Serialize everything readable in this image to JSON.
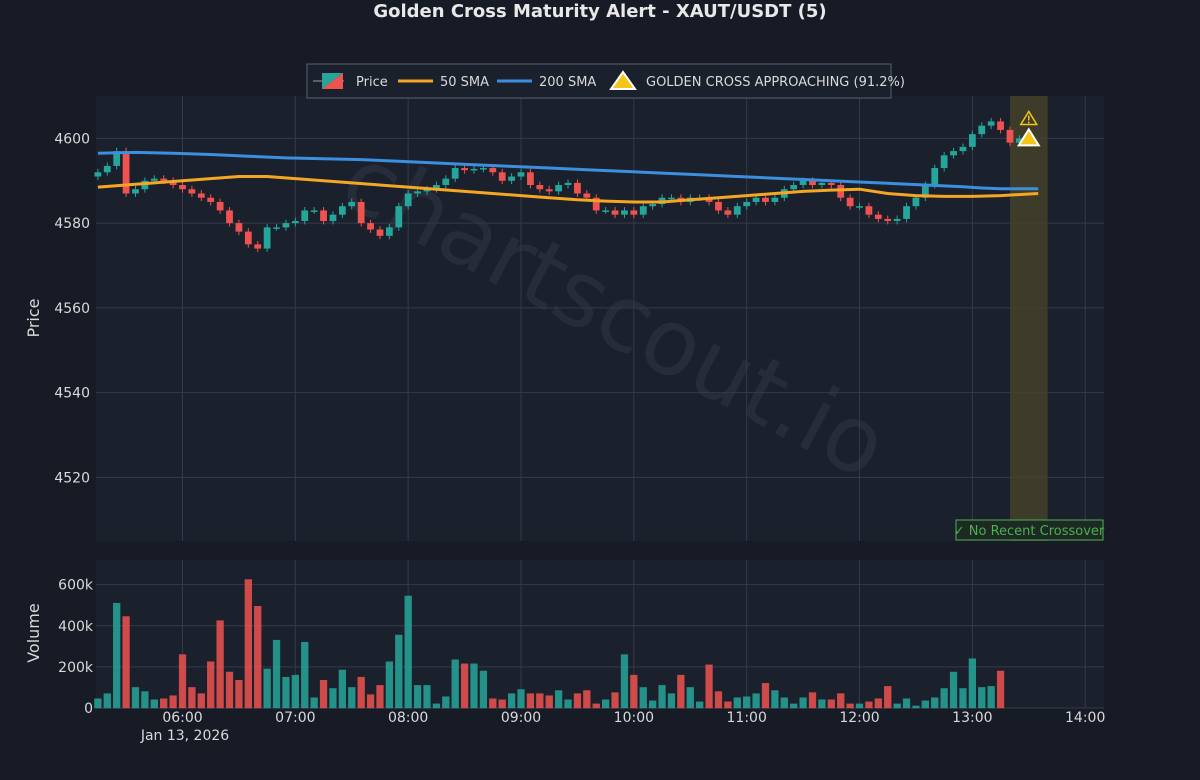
{
  "colors": {
    "background": "#161b26",
    "panel": "#1b202d",
    "bull": "#26a69a",
    "bear": "#ef5350",
    "sma50": "#f5a623",
    "sma200": "#3b8fde",
    "alert_band": "#4a4428",
    "badge": "#4caf50",
    "warning": "#f5c518"
  },
  "chart_data": {
    "type": "candlestick",
    "title": "Golden Cross Maturity Alert - XAUT/USDT (5)",
    "xlabel": "",
    "ylabel": "Price",
    "volume_ylabel": "Volume",
    "interval_minutes": 5,
    "x_range": [
      "05:14",
      "14:10"
    ],
    "y_range": [
      4505,
      4610
    ],
    "volume_range": [
      0,
      720000
    ],
    "x_ticks": [
      "06:00",
      "07:00",
      "08:00",
      "09:00",
      "10:00",
      "11:00",
      "12:00",
      "13:00",
      "14:00"
    ],
    "x_tick_date": "Jan 13, 2026",
    "y_ticks": [
      4520,
      4540,
      4560,
      4580,
      4600
    ],
    "volume_ticks": [
      "0",
      "200k",
      "400k",
      "600k"
    ],
    "grid": true,
    "legend_placement": "top-center",
    "legend": [
      "Price",
      "50 SMA",
      "200 SMA",
      "GOLDEN CROSS APPROACHING (91.2%)"
    ],
    "start_time": "05:15",
    "closes": [
      4592,
      4593.5,
      4597,
      4587,
      4588,
      4590,
      4590.5,
      4590,
      4589,
      4588,
      4587,
      4586,
      4585,
      4583,
      4580,
      4578,
      4575,
      4574,
      4579,
      4579,
      4580,
      4580.5,
      4583,
      4583,
      4580.5,
      4582,
      4584,
      4585,
      4580,
      4578.5,
      4577,
      4579,
      4584,
      4587,
      4587.5,
      4588,
      4589,
      4590.5,
      4593,
      4592.5,
      4592.8,
      4593,
      4592,
      4590,
      4591,
      4592,
      4589,
      4588,
      4587.5,
      4589,
      4589.5,
      4587,
      4586,
      4583,
      4583,
      4582,
      4583,
      4582,
      4584,
      4584.5,
      4586,
      4586,
      4585,
      4586,
      4586,
      4585,
      4583,
      4582,
      4584,
      4585,
      4586,
      4585,
      4586,
      4588,
      4589,
      4590,
      4589,
      4589.5,
      4589,
      4586,
      4584,
      4584,
      4582,
      4581,
      4580.5,
      4581,
      4584,
      4586,
      4589,
      4593,
      4596,
      4597,
      4598,
      4601,
      4603,
      4604,
      4602,
      4599,
      4600
    ],
    "volumes": [
      45000,
      70000,
      510000,
      445000,
      100000,
      80000,
      40000,
      45000,
      60000,
      260000,
      100000,
      70000,
      225000,
      425000,
      175000,
      135000,
      625000,
      495000,
      190000,
      330000,
      150000,
      160000,
      320000,
      50000,
      135000,
      95000,
      185000,
      100000,
      150000,
      65000,
      110000,
      225000,
      355000,
      545000,
      110000,
      110000,
      20000,
      55000,
      235000,
      215000,
      215000,
      180000,
      45000,
      40000,
      70000,
      90000,
      70000,
      70000,
      60000,
      85000,
      40000,
      70000,
      85000,
      20000,
      40000,
      75000,
      260000,
      160000,
      100000,
      35000,
      110000,
      70000,
      160000,
      100000,
      30000,
      210000,
      80000,
      30000,
      50000,
      55000,
      70000,
      120000,
      85000,
      50000,
      20000,
      50000,
      75000,
      40000,
      40000,
      70000,
      20000,
      20000,
      30000,
      45000,
      105000,
      20000,
      45000,
      10000,
      35000,
      50000,
      95000,
      175000,
      95000,
      240000,
      100000,
      105000,
      180000
    ],
    "opens": [],
    "sma50": [
      4588.5,
      4589,
      4589.5,
      4590,
      4590.5,
      4591,
      4591,
      4590.5,
      4590,
      4589.5,
      4589,
      4588.5,
      4588,
      4587.5,
      4587,
      4586.5,
      4586,
      4585.5,
      4585.2,
      4585,
      4585,
      4585.5,
      4586,
      4586.5,
      4587,
      4587.5,
      4587.8,
      4588,
      4587,
      4586.5,
      4586.3,
      4586.3,
      4586.5,
      4587
    ],
    "sma50_times": [
      "05:15",
      "05:30",
      "05:45",
      "06:00",
      "06:15",
      "06:30",
      "06:45",
      "07:00",
      "07:15",
      "07:30",
      "07:45",
      "08:00",
      "08:15",
      "08:30",
      "08:45",
      "09:00",
      "09:15",
      "09:30",
      "09:45",
      "10:00",
      "10:15",
      "10:30",
      "10:45",
      "11:00",
      "11:15",
      "11:30",
      "11:45",
      "12:00",
      "12:15",
      "12:30",
      "12:45",
      "13:00",
      "13:15",
      "13:35"
    ],
    "sma200": [
      4596.5,
      4596.7,
      4596.5,
      4596.2,
      4595.8,
      4595.4,
      4595.2,
      4595,
      4594.6,
      4594.2,
      4593.8,
      4593.4,
      4593,
      4592.6,
      4592.2,
      4591.8,
      4591.4,
      4591,
      4590.6,
      4590.2,
      4589.8,
      4589.4,
      4589,
      4588.6,
      4588.3,
      4588.1,
      4588.1,
      4588.1
    ],
    "sma200_times": [
      "05:15",
      "05:35",
      "05:55",
      "06:15",
      "06:35",
      "06:55",
      "07:15",
      "07:35",
      "07:55",
      "08:15",
      "08:35",
      "08:55",
      "09:15",
      "09:35",
      "09:55",
      "10:15",
      "10:35",
      "10:55",
      "11:15",
      "11:35",
      "11:55",
      "12:15",
      "12:35",
      "12:55",
      "13:05",
      "13:15",
      "13:25",
      "13:35"
    ],
    "alert_band": {
      "from": "13:20",
      "to": "13:40"
    },
    "alert_marker": {
      "time": "13:30",
      "price": 4600
    },
    "warning_marker": {
      "time": "13:30",
      "price": 4604.7
    },
    "badge": "✓ No Recent Crossover",
    "watermark": "chartscout.io"
  }
}
